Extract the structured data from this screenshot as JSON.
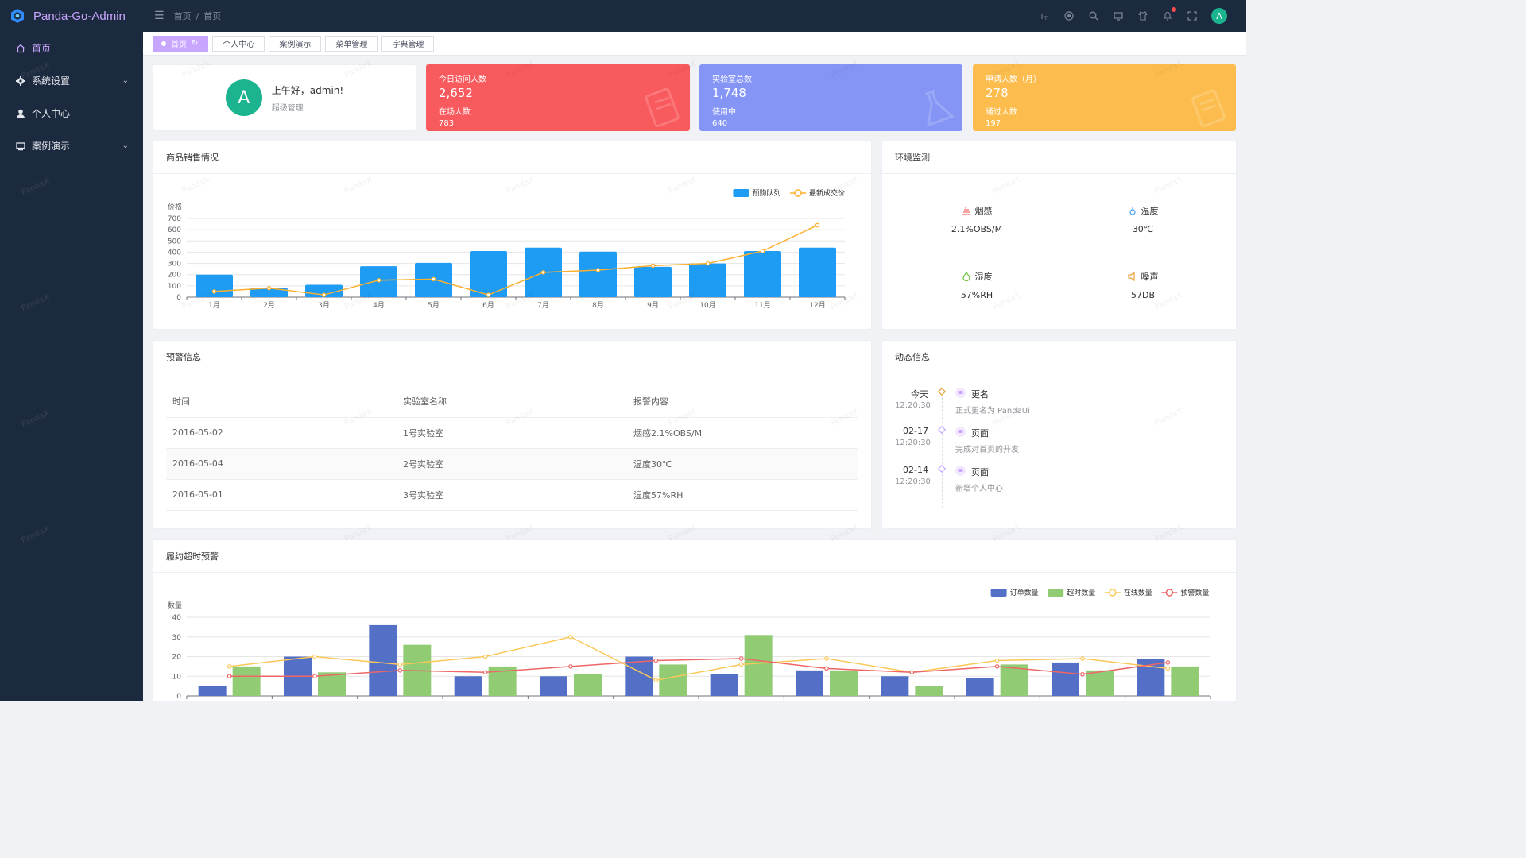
{
  "app": {
    "title": "Panda-Go-Admin"
  },
  "header": {
    "breadcrumbs": [
      "首页",
      "/",
      "首页"
    ],
    "avatar_letter": "A"
  },
  "sidebar": {
    "items": [
      {
        "label": "首页",
        "icon": "home-icon",
        "active": true
      },
      {
        "label": "系统设置",
        "icon": "gear-icon",
        "has_children": true
      },
      {
        "label": "个人中心",
        "icon": "user-icon"
      },
      {
        "label": "案例演示",
        "icon": "monitor-icon",
        "has_children": true
      }
    ],
    "arrow": "⌄"
  },
  "tags": [
    {
      "label": "首页",
      "active": true
    },
    {
      "label": "个人中心"
    },
    {
      "label": "案例演示"
    },
    {
      "label": "菜单管理"
    },
    {
      "label": "字典管理"
    }
  ],
  "watermark": "PandaX",
  "user_card": {
    "avatar_letter": "A",
    "greeting": "上午好，admin!",
    "role": "超级管理"
  },
  "stats": [
    {
      "label1": "今日访问人数",
      "value1": "2,652",
      "label2": "在场人数",
      "value2": "783",
      "color": "#f95a5d"
    },
    {
      "label1": "实验室总数",
      "value1": "1,748",
      "label2": "使用中",
      "value2": "640",
      "color": "#8595f5"
    },
    {
      "label1": "申请人数（月）",
      "value1": "278",
      "label2": "通过人数",
      "value2": "197",
      "color": "#fcbd4e"
    }
  ],
  "sales_card": {
    "title": "商品销售情况"
  },
  "env_card": {
    "title": "环境监测",
    "items": [
      {
        "label": "烟感",
        "value": "2.1%OBS/M",
        "icon": "smoke-icon",
        "color": "#f56c6c"
      },
      {
        "label": "温度",
        "value": "30℃",
        "icon": "thermometer-icon",
        "color": "#409eff"
      },
      {
        "label": "湿度",
        "value": "57%RH",
        "icon": "humidity-icon",
        "color": "#67c23a"
      },
      {
        "label": "噪声",
        "value": "57DB",
        "icon": "noise-icon",
        "color": "#e6a23c"
      }
    ]
  },
  "warn_card": {
    "title": "预警信息",
    "columns": [
      "时间",
      "实验室名称",
      "报警内容"
    ],
    "rows": [
      [
        "2016-05-02",
        "1号实验室",
        "烟感2.1%OBS/M"
      ],
      [
        "2016-05-04",
        "2号实验室",
        "温度30℃"
      ],
      [
        "2016-05-01",
        "3号实验室",
        "湿度57%RH"
      ]
    ]
  },
  "timeline_card": {
    "title": "动态信息",
    "items": [
      {
        "day": "今天",
        "time": "12:20:30",
        "title": "更名",
        "desc": "正式更名为 PandaUi",
        "dot_color": "#e6a23c"
      },
      {
        "day": "02-17",
        "time": "12:20:30",
        "title": "页面",
        "desc": "完成对首页的开发",
        "dot_color": "#c8a6ff"
      },
      {
        "day": "02-14",
        "time": "12:20:30",
        "title": "页面",
        "desc": "新增个人中心",
        "dot_color": "#c8a6ff"
      }
    ]
  },
  "overdue_card": {
    "title": "履约超时预警"
  },
  "chart_data": [
    {
      "type": "bar",
      "title": "",
      "xlabel": "",
      "ylabel": "价格",
      "ylim": [
        0,
        700
      ],
      "yticks": [
        0,
        100,
        200,
        300,
        400,
        500,
        600,
        700
      ],
      "categories": [
        "1月",
        "2月",
        "3月",
        "4月",
        "5月",
        "6月",
        "7月",
        "8月",
        "9月",
        "10月",
        "11月",
        "12月"
      ],
      "series": [
        {
          "name": "预购队列",
          "type": "bar",
          "color": "#1e9bf3",
          "values": [
            200,
            80,
            110,
            275,
            305,
            410,
            440,
            405,
            270,
            300,
            410,
            440
          ]
        },
        {
          "name": "最新成交价",
          "type": "line",
          "color": "#fbb030",
          "values": [
            50,
            80,
            20,
            150,
            160,
            20,
            220,
            240,
            280,
            300,
            410,
            640
          ]
        }
      ],
      "legend": "top-right",
      "grid": true
    },
    {
      "type": "bar",
      "title": "",
      "xlabel": "",
      "ylabel": "数量",
      "ylim": [
        0,
        40
      ],
      "yticks": [
        0,
        10,
        20,
        30,
        40
      ],
      "categories": [
        "",
        "",
        "",
        "",
        "",
        "",
        "",
        "",
        "",
        "",
        "",
        ""
      ],
      "series": [
        {
          "name": "订单数量",
          "type": "bar",
          "color": "#5470c6",
          "values": [
            5,
            20,
            36,
            10,
            10,
            20,
            11,
            13,
            10,
            9,
            17,
            19
          ]
        },
        {
          "name": "超时数量",
          "type": "bar",
          "color": "#91cc75",
          "values": [
            15,
            12,
            26,
            15,
            11,
            16,
            31,
            13,
            5,
            16,
            13,
            15
          ]
        },
        {
          "name": "在线数量",
          "type": "line",
          "color": "#fac858",
          "values": [
            15,
            20,
            16,
            20,
            30,
            8,
            16,
            19,
            12,
            18,
            19,
            14
          ]
        },
        {
          "name": "预警数量",
          "type": "line",
          "color": "#ee6666",
          "values": [
            10,
            10,
            13,
            12,
            15,
            18,
            19,
            14,
            12,
            15,
            11,
            17
          ]
        }
      ],
      "legend": "top-right",
      "grid": true
    }
  ]
}
